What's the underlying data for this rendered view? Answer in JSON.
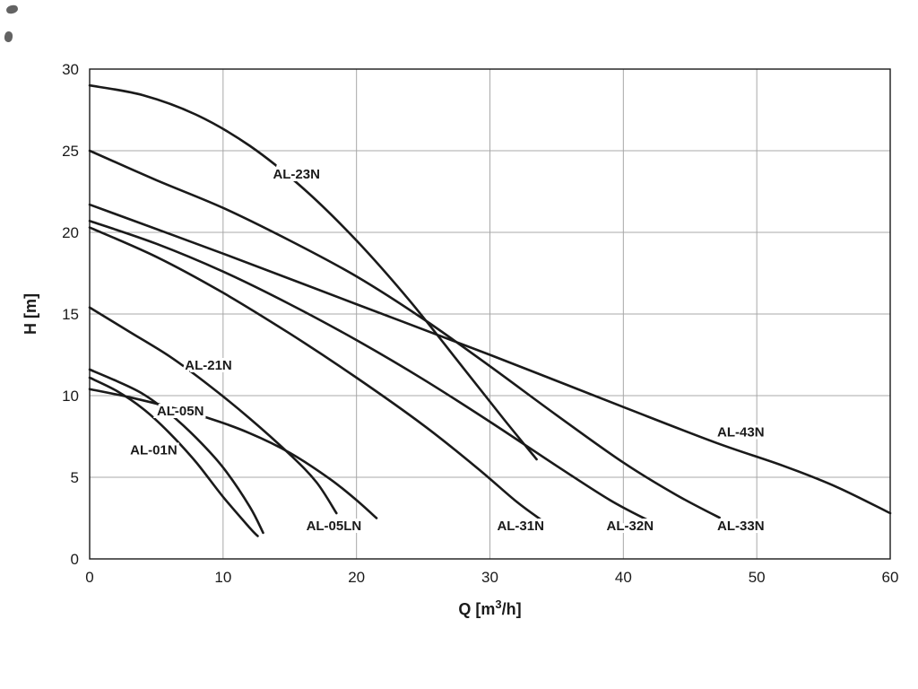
{
  "page": {
    "background": "#ffffff",
    "description": "Pump performance curve chart, head H versus flow Q, nine pump models"
  },
  "chart_data": {
    "type": "line",
    "title": "",
    "xlabel": "Q [m³/h]",
    "ylabel": "H [m]",
    "xlim": [
      0,
      60
    ],
    "ylim": [
      0,
      30
    ],
    "xticks": [
      0,
      10,
      20,
      30,
      40,
      50,
      60
    ],
    "yticks": [
      0,
      5,
      10,
      15,
      20,
      25,
      30
    ],
    "grid": true,
    "legend": "inline-labels",
    "colors": {
      "curve": "#1a1a1a",
      "grid": "#a8a8a8",
      "axis": "#1a1a1a",
      "background": "#ffffff"
    },
    "series": [
      {
        "name": "AL-23N",
        "label_pos": [
          15.5,
          23.3
        ],
        "points": [
          [
            0,
            29
          ],
          [
            4,
            28.4
          ],
          [
            8,
            27.2
          ],
          [
            12,
            25.3
          ],
          [
            16,
            22.7
          ],
          [
            20,
            19.5
          ],
          [
            24,
            15.8
          ],
          [
            28,
            11.7
          ],
          [
            31,
            8.6
          ],
          [
            33.5,
            6.1
          ]
        ]
      },
      {
        "name": "AL-33N",
        "label_pos": [
          48.8,
          1.75
        ],
        "points": [
          [
            0,
            25
          ],
          [
            5,
            23.2
          ],
          [
            10,
            21.5
          ],
          [
            15,
            19.5
          ],
          [
            20,
            17.3
          ],
          [
            25,
            14.7
          ],
          [
            30,
            11.8
          ],
          [
            35,
            8.8
          ],
          [
            40,
            5.9
          ],
          [
            44,
            3.9
          ],
          [
            47.5,
            2.4
          ]
        ]
      },
      {
        "name": "AL-43N",
        "label_pos": [
          48.8,
          7.5
        ],
        "points": [
          [
            0,
            21.7
          ],
          [
            10,
            18.7
          ],
          [
            20,
            15.6
          ],
          [
            30,
            12.5
          ],
          [
            40,
            9.3
          ],
          [
            47,
            7.1
          ],
          [
            52,
            5.7
          ],
          [
            56,
            4.4
          ],
          [
            60,
            2.8
          ]
        ]
      },
      {
        "name": "AL-32N",
        "label_pos": [
          40.5,
          1.75
        ],
        "points": [
          [
            0,
            20.7
          ],
          [
            5,
            19.3
          ],
          [
            10,
            17.6
          ],
          [
            15,
            15.6
          ],
          [
            20,
            13.4
          ],
          [
            25,
            11
          ],
          [
            30,
            8.4
          ],
          [
            35,
            5.7
          ],
          [
            39,
            3.6
          ],
          [
            42,
            2.3
          ]
        ]
      },
      {
        "name": "AL-31N",
        "label_pos": [
          32.3,
          1.75
        ],
        "points": [
          [
            0,
            20.3
          ],
          [
            5,
            18.5
          ],
          [
            10,
            16.3
          ],
          [
            15,
            13.8
          ],
          [
            20,
            11.1
          ],
          [
            25,
            8.2
          ],
          [
            29,
            5.6
          ],
          [
            32,
            3.5
          ],
          [
            34,
            2.3
          ]
        ]
      },
      {
        "name": "AL-21N",
        "label_pos": [
          8.9,
          11.6
        ],
        "points": [
          [
            0,
            15.4
          ],
          [
            3,
            13.9
          ],
          [
            6,
            12.4
          ],
          [
            9,
            10.6
          ],
          [
            12,
            8.6
          ],
          [
            15,
            6.4
          ],
          [
            17,
            4.7
          ],
          [
            18.5,
            2.8
          ]
        ]
      },
      {
        "name": "AL-05LN",
        "label_pos": [
          18.3,
          1.75
        ],
        "points": [
          [
            0,
            10.4
          ],
          [
            3,
            9.9
          ],
          [
            6,
            9.3
          ],
          [
            9,
            8.6
          ],
          [
            12,
            7.7
          ],
          [
            15,
            6.5
          ],
          [
            18,
            4.9
          ],
          [
            20,
            3.6
          ],
          [
            21.5,
            2.5
          ]
        ]
      },
      {
        "name": "AL-05N",
        "label_pos": [
          6.8,
          8.8
        ],
        "points": [
          [
            0,
            11.6
          ],
          [
            2,
            10.9
          ],
          [
            4,
            10.1
          ],
          [
            6,
            8.9
          ],
          [
            8,
            7.4
          ],
          [
            10,
            5.6
          ],
          [
            12,
            3.2
          ],
          [
            13,
            1.6
          ]
        ]
      },
      {
        "name": "AL-01N",
        "label_pos": [
          4.8,
          6.4
        ],
        "points": [
          [
            0,
            11.1
          ],
          [
            2,
            10.3
          ],
          [
            4,
            9.2
          ],
          [
            6,
            7.7
          ],
          [
            8,
            5.9
          ],
          [
            10,
            3.8
          ],
          [
            12,
            1.9
          ],
          [
            12.6,
            1.4
          ]
        ]
      }
    ]
  }
}
